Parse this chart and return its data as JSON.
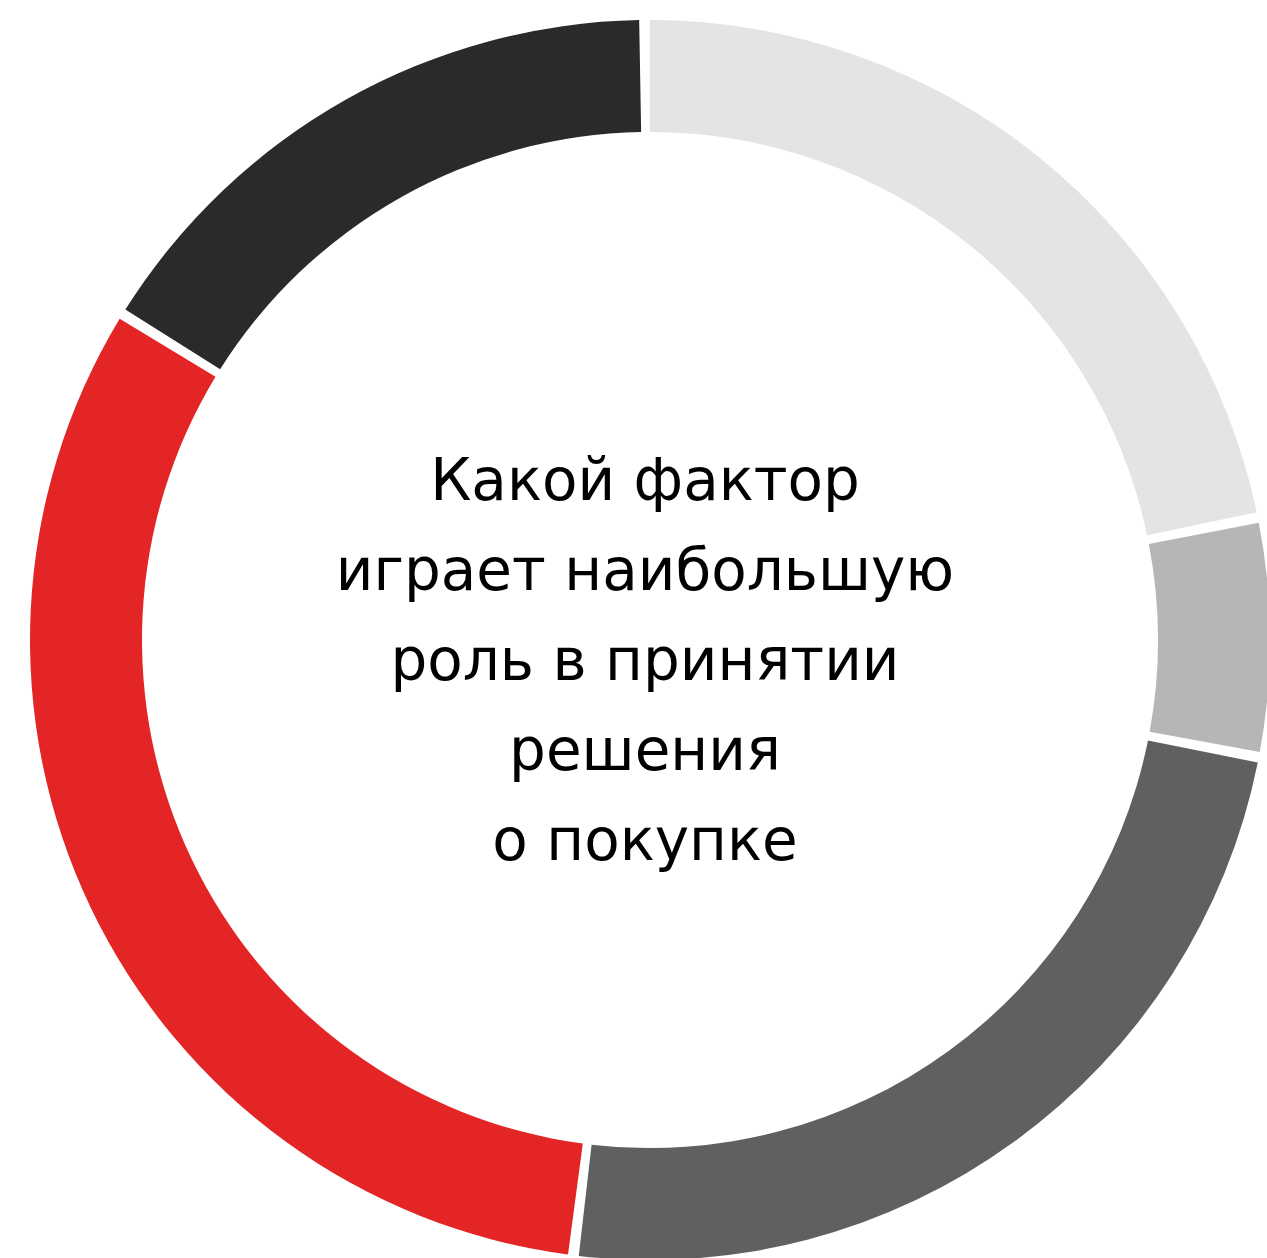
{
  "chart_data": {
    "type": "donut",
    "title": "Какой фактор\nиграет наибольшую\nроль в принятии\nрешения\nо покупке",
    "categories": [
      null,
      null,
      null,
      null,
      null
    ],
    "values": [
      22,
      6,
      24,
      32,
      16
    ],
    "colors": [
      "#e3e4e5",
      "#b4b6b7",
      "#5f6062",
      "#e32526",
      "#2a2a2b"
    ]
  }
}
